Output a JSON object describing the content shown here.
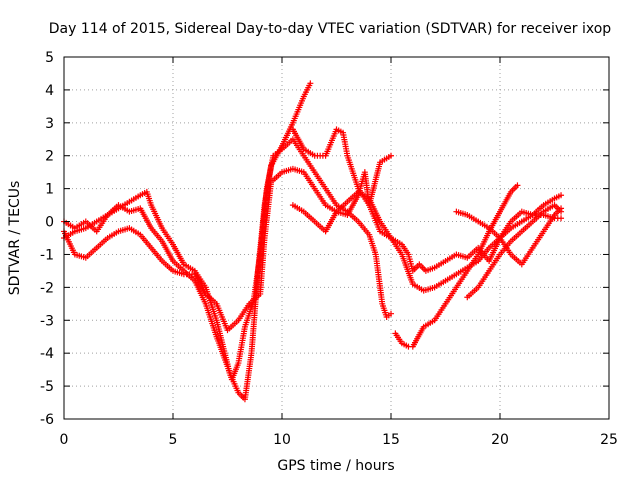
{
  "chart_data": {
    "type": "scatter",
    "title": "Day 114 of 2015, Sidereal Day-to-day VTEC variation (SDTVAR) for receiver ixop",
    "xlabel": "GPS time / hours",
    "ylabel": "SDTVAR / TECUs",
    "xlim": [
      0,
      25
    ],
    "ylim": [
      -6,
      5
    ],
    "xticks": [
      "0",
      "5",
      "10",
      "15",
      "20",
      "25"
    ],
    "yticks": [
      "-6",
      "-5",
      "-4",
      "-3",
      "-2",
      "-1",
      "0",
      "1",
      "2",
      "3",
      "4",
      "5"
    ],
    "grid": true,
    "legend": "none",
    "marker": "plus",
    "series_color": "#ff0000",
    "series": [
      {
        "points": [
          [
            0.0,
            -0.5
          ],
          [
            0.5,
            -0.3
          ],
          [
            1.0,
            -0.2
          ],
          [
            1.5,
            0.0
          ],
          [
            2.0,
            0.2
          ],
          [
            2.5,
            0.4
          ],
          [
            3.0,
            0.6
          ],
          [
            3.5,
            0.8
          ],
          [
            3.8,
            0.9
          ],
          [
            4.0,
            0.5
          ],
          [
            4.5,
            -0.2
          ],
          [
            5.0,
            -0.7
          ],
          [
            5.5,
            -1.3
          ],
          [
            6.0,
            -1.5
          ],
          [
            6.5,
            -2.0
          ],
          [
            7.0,
            -3.0
          ],
          [
            7.3,
            -3.8
          ],
          [
            7.6,
            -4.6
          ],
          [
            8.0,
            -5.2
          ],
          [
            8.3,
            -5.4
          ],
          [
            8.6,
            -4.0
          ],
          [
            8.9,
            -1.5
          ],
          [
            9.2,
            0.5
          ],
          [
            9.5,
            1.7
          ],
          [
            10.0,
            2.3
          ],
          [
            10.5,
            3.0
          ],
          [
            11.0,
            3.8
          ],
          [
            11.3,
            4.2
          ]
        ]
      },
      {
        "points": [
          [
            0.0,
            0.0
          ],
          [
            0.5,
            -0.2
          ],
          [
            1.0,
            0.0
          ],
          [
            1.5,
            -0.3
          ],
          [
            2.0,
            0.2
          ],
          [
            2.5,
            0.5
          ],
          [
            3.0,
            0.3
          ],
          [
            3.5,
            0.4
          ],
          [
            4.0,
            -0.2
          ],
          [
            4.5,
            -0.6
          ],
          [
            5.0,
            -1.2
          ],
          [
            5.5,
            -1.5
          ],
          [
            6.0,
            -1.8
          ],
          [
            6.5,
            -2.5
          ],
          [
            7.0,
            -3.5
          ],
          [
            7.5,
            -4.4
          ],
          [
            7.7,
            -4.8
          ],
          [
            8.0,
            -4.3
          ],
          [
            8.3,
            -3.2
          ],
          [
            8.7,
            -2.4
          ],
          [
            9.0,
            -1.0
          ],
          [
            9.3,
            1.0
          ],
          [
            9.6,
            2.0
          ],
          [
            10.0,
            2.2
          ],
          [
            10.5,
            2.5
          ],
          [
            11.0,
            2.0
          ],
          [
            11.5,
            1.5
          ],
          [
            12.0,
            1.0
          ],
          [
            12.5,
            0.5
          ],
          [
            13.0,
            0.3
          ],
          [
            13.5,
            0.0
          ],
          [
            14.0,
            -0.4
          ],
          [
            14.3,
            -1.0
          ],
          [
            14.6,
            -2.5
          ],
          [
            14.8,
            -2.9
          ],
          [
            15.0,
            -2.8
          ]
        ]
      },
      {
        "points": [
          [
            0.0,
            -0.3
          ],
          [
            0.5,
            -1.0
          ],
          [
            1.0,
            -1.1
          ],
          [
            1.5,
            -0.8
          ],
          [
            2.0,
            -0.5
          ],
          [
            2.5,
            -0.3
          ],
          [
            3.0,
            -0.2
          ],
          [
            3.5,
            -0.4
          ],
          [
            4.0,
            -0.8
          ],
          [
            4.5,
            -1.2
          ],
          [
            5.0,
            -1.5
          ],
          [
            5.5,
            -1.6
          ],
          [
            6.0,
            -1.6
          ],
          [
            6.5,
            -2.2
          ],
          [
            7.0,
            -2.5
          ],
          [
            7.5,
            -3.3
          ],
          [
            8.0,
            -3.0
          ],
          [
            8.5,
            -2.5
          ],
          [
            9.0,
            -2.2
          ],
          [
            9.2,
            -0.5
          ],
          [
            9.5,
            1.2
          ],
          [
            10.0,
            1.5
          ],
          [
            10.5,
            1.6
          ],
          [
            11.0,
            1.5
          ],
          [
            11.5,
            1.0
          ],
          [
            12.0,
            0.5
          ],
          [
            12.5,
            0.3
          ],
          [
            13.0,
            0.6
          ],
          [
            13.5,
            0.9
          ],
          [
            14.0,
            0.7
          ],
          [
            14.5,
            0.0
          ],
          [
            15.0,
            -0.5
          ],
          [
            15.5,
            -1.0
          ],
          [
            16.0,
            -1.9
          ],
          [
            16.5,
            -2.1
          ],
          [
            17.0,
            -2.0
          ],
          [
            17.5,
            -1.8
          ],
          [
            18.0,
            -1.6
          ],
          [
            18.5,
            -1.4
          ],
          [
            19.0,
            -1.2
          ],
          [
            19.5,
            -0.8
          ],
          [
            20.0,
            -0.5
          ],
          [
            20.5,
            -0.2
          ],
          [
            21.0,
            0.0
          ],
          [
            21.5,
            0.2
          ],
          [
            22.0,
            0.5
          ],
          [
            22.5,
            0.7
          ],
          [
            22.8,
            0.8
          ]
        ]
      },
      {
        "points": [
          [
            10.5,
            2.8
          ],
          [
            11.0,
            2.2
          ],
          [
            11.5,
            2.0
          ],
          [
            12.0,
            2.0
          ],
          [
            12.5,
            2.8
          ],
          [
            12.8,
            2.7
          ],
          [
            13.0,
            2.0
          ],
          [
            13.5,
            1.0
          ],
          [
            14.0,
            0.5
          ],
          [
            14.5,
            1.8
          ],
          [
            15.0,
            2.0
          ]
        ]
      },
      {
        "points": [
          [
            10.5,
            0.5
          ],
          [
            11.0,
            0.3
          ],
          [
            11.5,
            0.0
          ],
          [
            12.0,
            -0.3
          ],
          [
            12.5,
            0.3
          ],
          [
            13.0,
            0.2
          ],
          [
            13.5,
            0.8
          ],
          [
            13.8,
            1.5
          ],
          [
            14.0,
            0.5
          ],
          [
            14.5,
            -0.3
          ],
          [
            15.0,
            -0.5
          ],
          [
            15.5,
            -0.7
          ],
          [
            15.8,
            -1.0
          ],
          [
            16.0,
            -1.5
          ],
          [
            16.3,
            -1.3
          ],
          [
            16.6,
            -1.5
          ],
          [
            17.0,
            -1.4
          ],
          [
            17.5,
            -1.2
          ],
          [
            18.0,
            -1.0
          ],
          [
            18.5,
            -1.1
          ],
          [
            19.0,
            -0.8
          ],
          [
            19.5,
            -1.2
          ],
          [
            20.0,
            -0.5
          ],
          [
            20.5,
            0.0
          ],
          [
            21.0,
            0.3
          ],
          [
            21.5,
            0.2
          ],
          [
            22.0,
            0.2
          ],
          [
            22.5,
            0.1
          ],
          [
            22.8,
            0.1
          ]
        ]
      },
      {
        "points": [
          [
            15.2,
            -3.4
          ],
          [
            15.5,
            -3.7
          ],
          [
            15.8,
            -3.8
          ],
          [
            16.0,
            -3.8
          ],
          [
            16.5,
            -3.2
          ],
          [
            17.0,
            -3.0
          ],
          [
            17.5,
            -2.5
          ],
          [
            18.0,
            -2.0
          ],
          [
            18.5,
            -1.5
          ],
          [
            19.0,
            -1.0
          ],
          [
            19.5,
            -0.3
          ],
          [
            20.0,
            0.3
          ],
          [
            20.5,
            0.9
          ],
          [
            20.8,
            1.1
          ]
        ]
      },
      {
        "points": [
          [
            18.5,
            -2.3
          ],
          [
            19.0,
            -2.0
          ],
          [
            19.5,
            -1.5
          ],
          [
            20.0,
            -1.0
          ],
          [
            20.5,
            -0.6
          ],
          [
            21.0,
            -0.3
          ],
          [
            21.5,
            0.0
          ],
          [
            22.0,
            0.3
          ],
          [
            22.5,
            0.5
          ],
          [
            22.8,
            0.3
          ]
        ]
      },
      {
        "points": [
          [
            18.0,
            0.3
          ],
          [
            18.5,
            0.2
          ],
          [
            19.0,
            0.0
          ],
          [
            19.5,
            -0.2
          ],
          [
            20.0,
            -0.5
          ],
          [
            20.5,
            -1.0
          ],
          [
            21.0,
            -1.3
          ],
          [
            21.5,
            -0.8
          ],
          [
            22.0,
            -0.3
          ],
          [
            22.5,
            0.2
          ],
          [
            22.8,
            0.4
          ]
        ]
      }
    ]
  }
}
